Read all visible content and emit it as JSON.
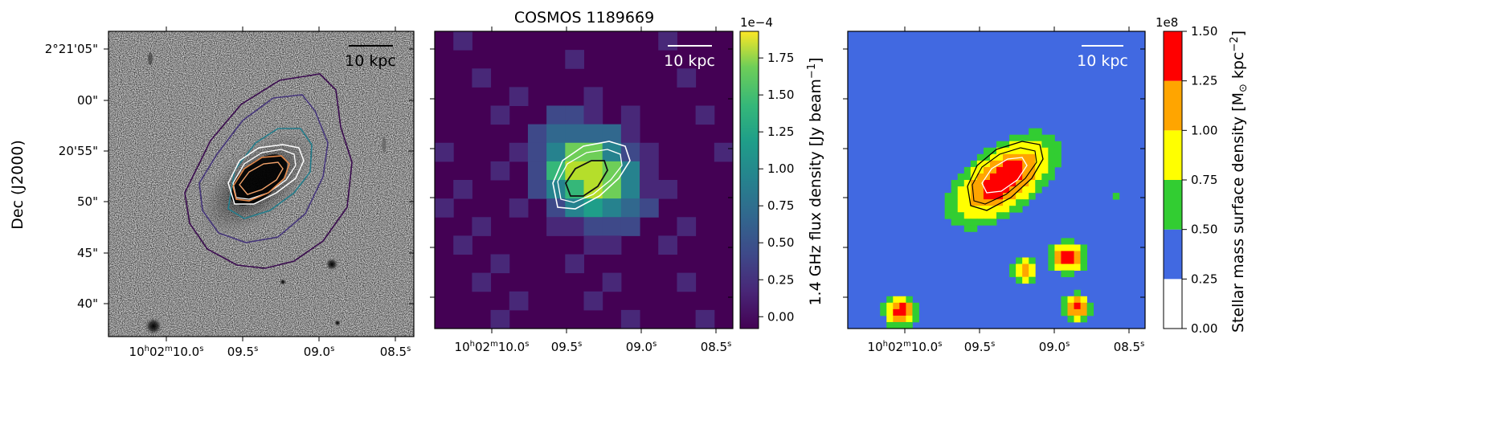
{
  "figure": {
    "title": "COSMOS 1189669",
    "ylabel": "Dec (J2000)",
    "scalebar_label": "10 kpc"
  },
  "chart_data": [
    {
      "type": "image",
      "name": "optical-panel",
      "description": "greyscale optical cutout with radio contours",
      "y_ticks": [
        "2°21'05\"",
        "00\"",
        "20'55\"",
        "50\"",
        "45\"",
        "40\""
      ],
      "x_ticks": [
        {
          "main": "10",
          "h": "h",
          "mid": "02",
          "m": "m",
          "sec": "10.0",
          "s": "s"
        },
        {
          "main": "09.5",
          "s": "s"
        },
        {
          "main": "09.0",
          "s": "s"
        },
        {
          "main": "08.5",
          "s": "s"
        }
      ],
      "scalebar": "10 kpc",
      "contour_colors": [
        "#3a0b4f",
        "#45357a",
        "#237d8c",
        "#ffffff",
        "#e6894a"
      ]
    },
    {
      "type": "heatmap",
      "name": "radio-panel",
      "title": "COSMOS 1189669",
      "x_ticks": [
        {
          "main": "10",
          "h": "h",
          "mid": "02",
          "m": "m",
          "sec": "10.0",
          "s": "s"
        },
        {
          "main": "09.5",
          "s": "s"
        },
        {
          "main": "09.0",
          "s": "s"
        },
        {
          "main": "08.5",
          "s": "s"
        }
      ],
      "scalebar": "10 kpc",
      "colormap": "viridis",
      "colorbar": {
        "label": "1.4 GHz flux density [Jy beam",
        "label_sup": "−1",
        "label_end": "]",
        "multiplier": "1e−4",
        "range": [
          -0.08,
          1.93
        ],
        "ticks": [
          "0.00",
          "0.25",
          "0.50",
          "0.75",
          "1.00",
          "1.25",
          "1.50",
          "1.75"
        ],
        "tick_values": [
          0.0,
          0.25,
          0.5,
          0.75,
          1.0,
          1.25,
          1.5,
          1.75
        ]
      }
    },
    {
      "type": "heatmap",
      "name": "mass-panel",
      "x_ticks": [
        {
          "main": "10",
          "h": "h",
          "mid": "02",
          "m": "m",
          "sec": "10.0",
          "s": "s"
        },
        {
          "main": "09.5",
          "s": "s"
        },
        {
          "main": "09.0",
          "s": "s"
        },
        {
          "main": "08.5",
          "s": "s"
        }
      ],
      "scalebar": "10 kpc",
      "colorbar": {
        "label_pre": "Stellar mass surface density [M",
        "label_sub": "⊙",
        "label_mid": "kpc",
        "label_sup": "−2",
        "label_end": "]",
        "multiplier": "1e8",
        "range": [
          0.0,
          1.5
        ],
        "ticks": [
          "0.00",
          "0.25",
          "0.50",
          "0.75",
          "1.00",
          "1.25",
          "1.50"
        ],
        "tick_values": [
          0.0,
          0.25,
          0.5,
          0.75,
          1.0,
          1.25,
          1.5
        ],
        "bins": [
          {
            "from": 0.0,
            "to": 0.25,
            "color": "#ffffff"
          },
          {
            "from": 0.25,
            "to": 0.5,
            "color": "#4169e1"
          },
          {
            "from": 0.5,
            "to": 0.75,
            "color": "#32cd32"
          },
          {
            "from": 0.75,
            "to": 1.0,
            "color": "#ffff00"
          },
          {
            "from": 1.0,
            "to": 1.25,
            "color": "#ffa500"
          },
          {
            "from": 1.25,
            "to": 1.5,
            "color": "#ff0000"
          }
        ]
      }
    }
  ]
}
